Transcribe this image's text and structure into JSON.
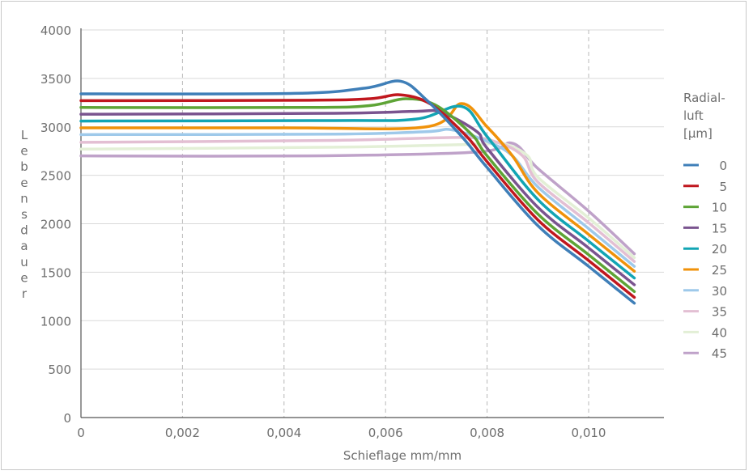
{
  "chart_data": {
    "type": "line",
    "title": "",
    "xlabel": "Schieflage mm/mm",
    "ylabel": "Lebensdauer",
    "xlim": [
      0,
      0.0115
    ],
    "ylim": [
      0,
      4000
    ],
    "x_ticks": [
      0,
      0.002,
      0.004,
      0.006,
      0.008,
      0.01
    ],
    "x_tick_labels": [
      "0",
      "0,002",
      "0,004",
      "0,006",
      "0,008",
      "0,010"
    ],
    "y_ticks": [
      0,
      500,
      1000,
      1500,
      2000,
      2500,
      3000,
      3500,
      4000
    ],
    "y_tick_labels": [
      "0",
      "500",
      "1000",
      "1500",
      "2000",
      "2500",
      "3000",
      "3500",
      "4000"
    ],
    "grid": {
      "horizontal": "solid",
      "vertical": "dashed"
    },
    "legend": {
      "title_lines": [
        "Radial-",
        "luft",
        "[µm]"
      ],
      "placement": "right"
    },
    "series": [
      {
        "name": "0",
        "color": "#3f7fb8",
        "points": [
          [
            0,
            3340
          ],
          [
            0.0042,
            3345
          ],
          [
            0.0056,
            3400
          ],
          [
            0.0063,
            3470
          ],
          [
            0.0068,
            3280
          ],
          [
            0.0075,
            2900
          ],
          [
            0.008,
            2580
          ],
          [
            0.009,
            1980
          ],
          [
            0.01,
            1560
          ],
          [
            0.0109,
            1180
          ]
        ]
      },
      {
        "name": "5",
        "color": "#c0171e",
        "points": [
          [
            0,
            3270
          ],
          [
            0.0045,
            3275
          ],
          [
            0.0057,
            3290
          ],
          [
            0.0063,
            3330
          ],
          [
            0.0069,
            3230
          ],
          [
            0.0076,
            2900
          ],
          [
            0.008,
            2640
          ],
          [
            0.009,
            2040
          ],
          [
            0.01,
            1620
          ],
          [
            0.0109,
            1240
          ]
        ]
      },
      {
        "name": "10",
        "color": "#5ea436",
        "points": [
          [
            0,
            3200
          ],
          [
            0.0045,
            3200
          ],
          [
            0.0057,
            3220
          ],
          [
            0.0064,
            3290
          ],
          [
            0.007,
            3220
          ],
          [
            0.0077,
            2920
          ],
          [
            0.008,
            2700
          ],
          [
            0.009,
            2100
          ],
          [
            0.01,
            1680
          ],
          [
            0.0109,
            1300
          ]
        ]
      },
      {
        "name": "15",
        "color": "#7a548f",
        "points": [
          [
            0,
            3130
          ],
          [
            0.005,
            3140
          ],
          [
            0.0066,
            3160
          ],
          [
            0.0071,
            3150
          ],
          [
            0.0078,
            2950
          ],
          [
            0.008,
            2780
          ],
          [
            0.009,
            2170
          ],
          [
            0.01,
            1750
          ],
          [
            0.0109,
            1370
          ]
        ]
      },
      {
        "name": "20",
        "color": "#12a5b4",
        "points": [
          [
            0,
            3060
          ],
          [
            0.005,
            3065
          ],
          [
            0.0066,
            3080
          ],
          [
            0.0075,
            3210
          ],
          [
            0.008,
            2900
          ],
          [
            0.009,
            2250
          ],
          [
            0.01,
            1820
          ],
          [
            0.0109,
            1440
          ]
        ]
      },
      {
        "name": "25",
        "color": "#f0920a",
        "points": [
          [
            0,
            2990
          ],
          [
            0.004,
            2990
          ],
          [
            0.0068,
            3000
          ],
          [
            0.0075,
            3240
          ],
          [
            0.008,
            3000
          ],
          [
            0.0085,
            2700
          ],
          [
            0.009,
            2320
          ],
          [
            0.01,
            1890
          ],
          [
            0.0109,
            1510
          ]
        ]
      },
      {
        "name": "30",
        "color": "#9ec9ea",
        "points": [
          [
            0,
            2920
          ],
          [
            0.005,
            2925
          ],
          [
            0.0068,
            2950
          ],
          [
            0.0073,
            2970
          ],
          [
            0.008,
            2850
          ],
          [
            0.0085,
            2700
          ],
          [
            0.009,
            2380
          ],
          [
            0.01,
            1950
          ],
          [
            0.0109,
            1560
          ]
        ]
      },
      {
        "name": "35",
        "color": "#e3bfd3",
        "points": [
          [
            0,
            2840
          ],
          [
            0.005,
            2860
          ],
          [
            0.0075,
            2890
          ],
          [
            0.0082,
            2840
          ],
          [
            0.0087,
            2700
          ],
          [
            0.009,
            2430
          ],
          [
            0.01,
            2010
          ],
          [
            0.0109,
            1610
          ]
        ]
      },
      {
        "name": "40",
        "color": "#e3efd6",
        "points": [
          [
            0,
            2770
          ],
          [
            0.005,
            2790
          ],
          [
            0.0078,
            2820
          ],
          [
            0.0083,
            2830
          ],
          [
            0.0088,
            2700
          ],
          [
            0.009,
            2480
          ],
          [
            0.01,
            2060
          ],
          [
            0.0109,
            1650
          ]
        ]
      },
      {
        "name": "45",
        "color": "#bfa2c9",
        "points": [
          [
            0,
            2700
          ],
          [
            0.0045,
            2700
          ],
          [
            0.0078,
            2740
          ],
          [
            0.0085,
            2830
          ],
          [
            0.009,
            2570
          ],
          [
            0.01,
            2130
          ],
          [
            0.0109,
            1690
          ]
        ]
      }
    ]
  }
}
